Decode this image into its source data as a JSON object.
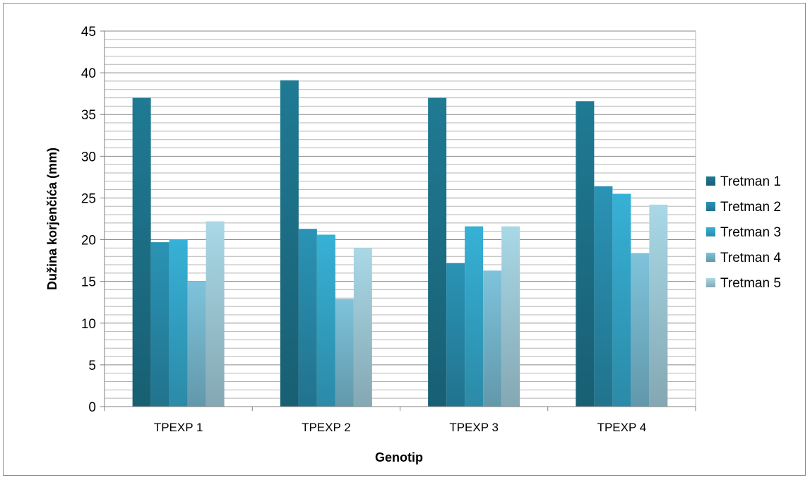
{
  "chart_data": {
    "type": "bar",
    "title": "",
    "xlabel": "Genotip",
    "ylabel": "Dužina korjenčića (mm)",
    "ylim": [
      0,
      45
    ],
    "y_major_step": 5,
    "y_minor_step": 1,
    "grid": true,
    "legend_position": "right",
    "categories": [
      "TPEXP 1",
      "TPEXP 2",
      "TPEXP 3",
      "TPEXP 4"
    ],
    "series": [
      {
        "name": "Tretman 1",
        "color": "#1f7a93",
        "values": [
          37.0,
          39.1,
          37.0,
          36.6
        ]
      },
      {
        "name": "Tretman 2",
        "color": "#2a93b5",
        "values": [
          19.7,
          21.3,
          17.2,
          26.4
        ]
      },
      {
        "name": "Tretman 3",
        "color": "#37b1d6",
        "values": [
          20.0,
          20.6,
          21.6,
          25.5
        ]
      },
      {
        "name": "Tretman 4",
        "color": "#7ec3db",
        "values": [
          15.0,
          12.9,
          16.3,
          18.4
        ]
      },
      {
        "name": "Tretman 5",
        "color": "#a9d8e6",
        "values": [
          22.2,
          19.0,
          21.6,
          24.2
        ]
      }
    ]
  }
}
